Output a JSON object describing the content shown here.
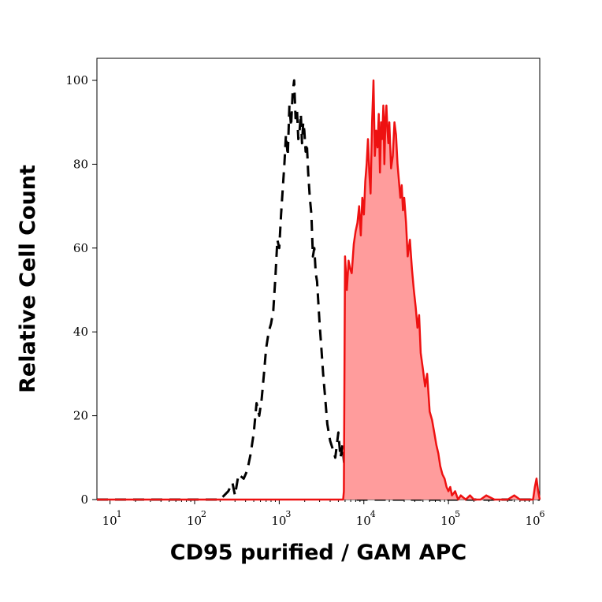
{
  "chart_data": {
    "type": "area",
    "xlabel": "CD95 purified / GAM APC",
    "ylabel": "Relative Cell Count",
    "xscale": "log",
    "xlim": [
      7,
      1200000
    ],
    "ylim": [
      0,
      100
    ],
    "x_ticks": [
      {
        "base": "10",
        "exp": "1",
        "value": 10
      },
      {
        "base": "10",
        "exp": "2",
        "value": 100
      },
      {
        "base": "10",
        "exp": "3",
        "value": 1000
      },
      {
        "base": "10",
        "exp": "4",
        "value": 10000
      },
      {
        "base": "10",
        "exp": "5",
        "value": 100000
      },
      {
        "base": "10",
        "exp": "6",
        "value": 1000000
      }
    ],
    "y_ticks": [
      "0",
      "20",
      "40",
      "60",
      "80",
      "100"
    ],
    "grid": false,
    "legend": "none",
    "series": [
      {
        "style": "dashed",
        "fill": false,
        "color": "#000000",
        "x": [
          7,
          150,
          180,
          200,
          250,
          280,
          300,
          330,
          380,
          420,
          460,
          500,
          540,
          580,
          620,
          660,
          700,
          750,
          800,
          850,
          900,
          950,
          1000,
          1050,
          1100,
          1150,
          1200,
          1260,
          1320,
          1380,
          1440,
          1500,
          1560,
          1620,
          1680,
          1740,
          1800,
          1860,
          1920,
          1980,
          2050,
          2120,
          2200,
          2300,
          2400,
          2500,
          2600,
          2700,
          2800,
          2900,
          3000,
          3150,
          3300,
          3500,
          3700,
          4000,
          4300,
          4600,
          5000,
          5300,
          5600,
          6000,
          7000,
          12000,
          20000,
          1200000
        ],
        "y": [
          0,
          0,
          0,
          0,
          2,
          4,
          1,
          6,
          5,
          7,
          11,
          16,
          23,
          20,
          24,
          30,
          36,
          40,
          42,
          45,
          53,
          62,
          60,
          68,
          74,
          80,
          87,
          82,
          94,
          89,
          97,
          100,
          91,
          93,
          86,
          88,
          92,
          85,
          90,
          88,
          83,
          85,
          78,
          72,
          68,
          58,
          60,
          54,
          52,
          47,
          42,
          36,
          30,
          24,
          18,
          14,
          12,
          10,
          16,
          10,
          13,
          6,
          0,
          0,
          0,
          0
        ]
      },
      {
        "style": "solid",
        "fill": true,
        "color": "#ee1111",
        "fill_color": "#ff9c9c",
        "x": [
          7,
          5700,
          5800,
          6000,
          6300,
          6600,
          6900,
          7200,
          7600,
          8000,
          8400,
          8800,
          9200,
          9600,
          10000,
          10400,
          10800,
          11200,
          11600,
          12000,
          12500,
          13000,
          13500,
          14000,
          14500,
          15000,
          15500,
          16000,
          16500,
          17000,
          17500,
          18000,
          18500,
          19000,
          19500,
          20000,
          21000,
          22000,
          23000,
          24000,
          25000,
          26000,
          27000,
          28000,
          29000,
          30000,
          31500,
          33000,
          35000,
          37000,
          39000,
          41000,
          43000,
          45000,
          47000,
          50000,
          53000,
          56000,
          60000,
          64000,
          68000,
          72000,
          76000,
          80000,
          85000,
          90000,
          95000,
          100000,
          105000,
          110000,
          120000,
          130000,
          140000,
          160000,
          180000,
          200000,
          240000,
          280000,
          350000,
          420000,
          500000,
          600000,
          700000,
          800000,
          900000,
          1000000,
          1050000,
          1100000,
          1150000,
          1200000
        ],
        "y": [
          0,
          0,
          2,
          58,
          50,
          57,
          55,
          54,
          61,
          64,
          66,
          70,
          63,
          72,
          68,
          76,
          80,
          86,
          78,
          73,
          90,
          100,
          82,
          88,
          84,
          92,
          78,
          90,
          86,
          94,
          80,
          91,
          94,
          88,
          85,
          90,
          79,
          82,
          90,
          87,
          80,
          76,
          72,
          75,
          69,
          72,
          66,
          58,
          62,
          55,
          50,
          46,
          41,
          44,
          35,
          31,
          27,
          30,
          21,
          19,
          16,
          13,
          11,
          8,
          6,
          5,
          3,
          2,
          3,
          1,
          2,
          0,
          1,
          0,
          1,
          0,
          0,
          1,
          0,
          0,
          0,
          1,
          0,
          0,
          0,
          0,
          3,
          5,
          2,
          0
        ]
      }
    ]
  }
}
